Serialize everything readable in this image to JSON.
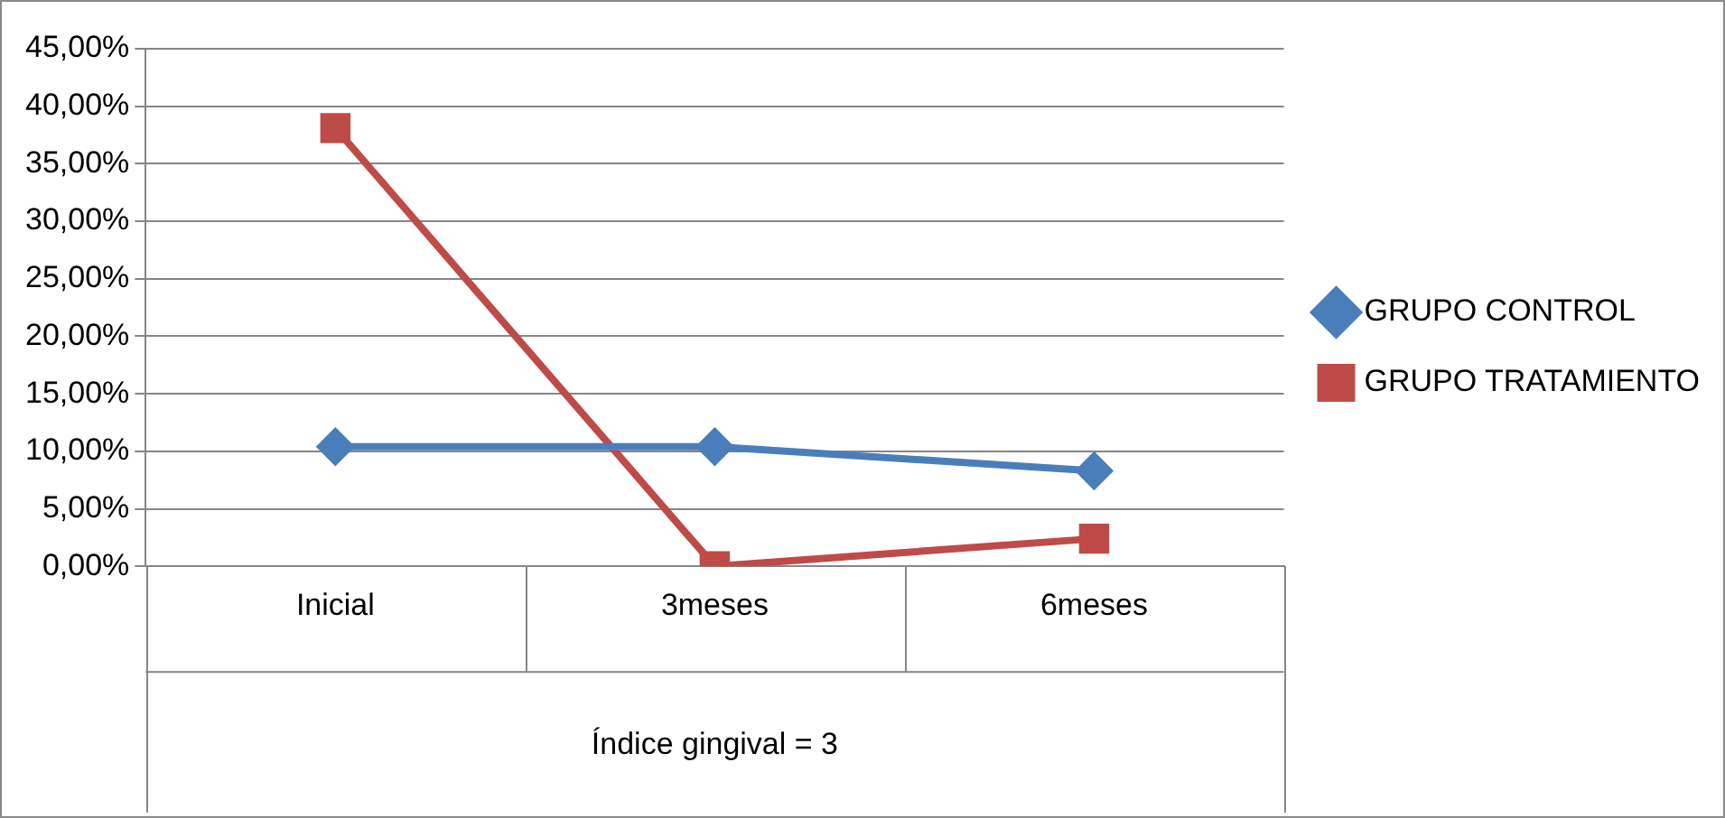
{
  "chart_data": {
    "type": "line",
    "categories": [
      "Inicial",
      "3meses",
      "6meses"
    ],
    "xlabel": "Índice gingival = 3",
    "series": [
      {
        "name": "GRUPO CONTROL",
        "color": "#4a7ebb",
        "marker": "diamond",
        "values": [
          10.4,
          10.4,
          8.3
        ]
      },
      {
        "name": "GRUPO TRATAMIENTO",
        "color": "#be4b48",
        "marker": "square",
        "values": [
          38.1,
          0,
          2.4
        ]
      }
    ],
    "ylim": [
      0,
      45
    ],
    "yticks": [
      {
        "value": 0,
        "label": "0,00%"
      },
      {
        "value": 5,
        "label": "5,00%"
      },
      {
        "value": 10,
        "label": "10,00%"
      },
      {
        "value": 15,
        "label": "15,00%"
      },
      {
        "value": 20,
        "label": "20,00%"
      },
      {
        "value": 25,
        "label": "25,00%"
      },
      {
        "value": 30,
        "label": "30,00%"
      },
      {
        "value": 35,
        "label": "35,00%"
      },
      {
        "value": 40,
        "label": "40,00%"
      },
      {
        "value": 45,
        "label": "45,00%"
      }
    ],
    "grid": "y",
    "legend": "right"
  }
}
